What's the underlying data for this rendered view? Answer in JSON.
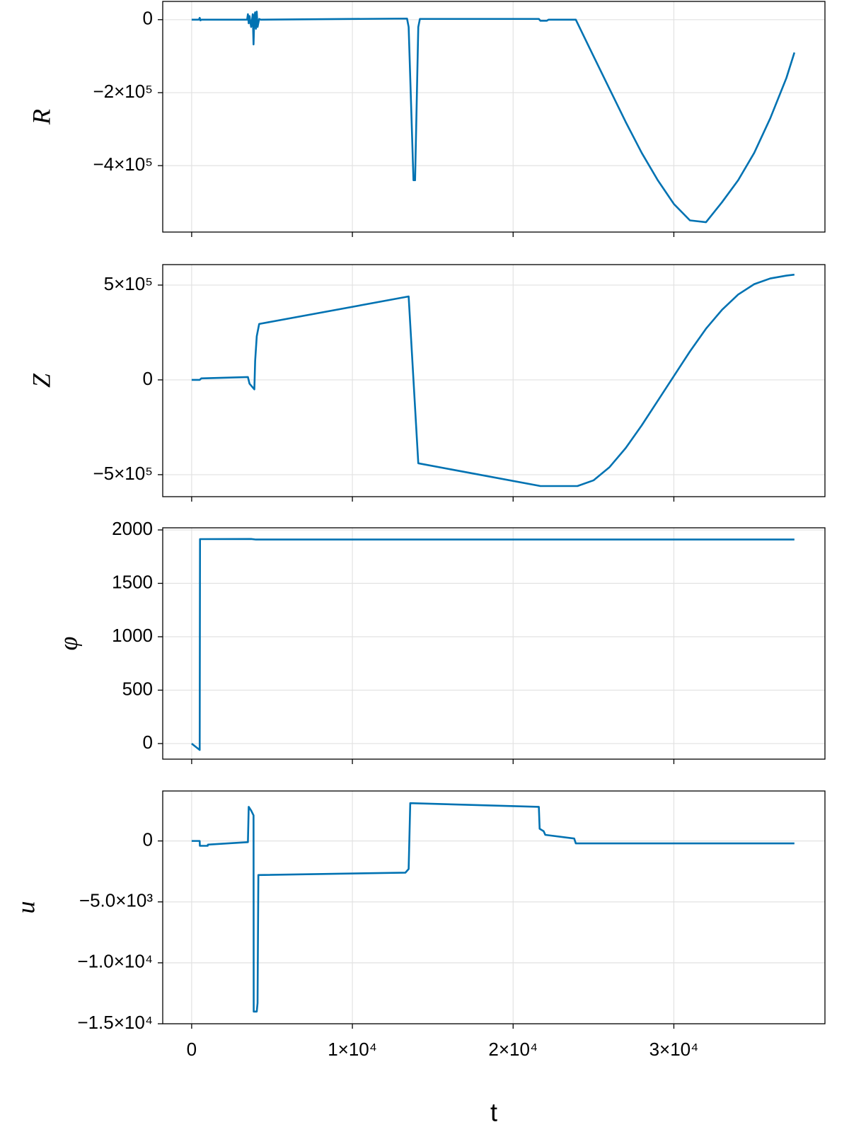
{
  "chart_data": [
    {
      "type": "line",
      "ylabel": "R",
      "color": "#0072b2",
      "x": [
        0,
        450,
        500,
        550,
        600,
        3450,
        3500,
        3550,
        3600,
        3700,
        3800,
        3850,
        3900,
        3950,
        4000,
        4050,
        4100,
        4200,
        4300,
        13400,
        13500,
        13800,
        13900,
        14100,
        14200,
        21600,
        21700,
        22100,
        22200,
        23900,
        25000,
        26000,
        27000,
        28000,
        29000,
        30000,
        31000,
        32000,
        33000,
        34000,
        35000,
        36000,
        37000,
        37500
      ],
      "values": [
        0,
        0,
        5000,
        -2000,
        0,
        0,
        15000,
        -10000,
        10000,
        -20000,
        15000,
        -68000,
        10000,
        20000,
        -25000,
        22000,
        -20000,
        2000,
        0,
        3000,
        -20000,
        -440000,
        -440000,
        -20000,
        2000,
        2000,
        -3000,
        -3000,
        0,
        0,
        -100000,
        -190000,
        -280000,
        -365000,
        -440000,
        -505000,
        -550000,
        -555000,
        -500000,
        -440000,
        -365000,
        -270000,
        -160000,
        -90000
      ],
      "ylim": [
        -582000,
        50000
      ],
      "yticks": [
        {
          "value": -400000,
          "label": "−4×10⁵"
        },
        {
          "value": -200000,
          "label": "−2×10⁵"
        },
        0
      ]
    },
    {
      "type": "line",
      "ylabel": "Z",
      "color": "#0072b2",
      "x": [
        0,
        500,
        600,
        3500,
        3600,
        3900,
        3950,
        4050,
        4200,
        13500,
        14100,
        21700,
        24000,
        25000,
        26000,
        27000,
        28000,
        29000,
        30000,
        31000,
        32000,
        33000,
        34000,
        35000,
        36000,
        37000,
        37500
      ],
      "values": [
        0,
        0,
        8000,
        15000,
        -20000,
        -50000,
        100000,
        230000,
        295000,
        440000,
        -440000,
        -560000,
        -560000,
        -530000,
        -460000,
        -360000,
        -240000,
        -110000,
        20000,
        150000,
        270000,
        370000,
        450000,
        505000,
        535000,
        550000,
        555000
      ],
      "ylim": [
        -616000,
        608000
      ],
      "yticks": [
        {
          "value": -500000,
          "label": "−5×10⁵"
        },
        0,
        {
          "value": 500000,
          "label": "5×10⁵"
        }
      ]
    },
    {
      "type": "line",
      "ylabel": "φ",
      "color": "#0072b2",
      "x": [
        0,
        500,
        520,
        3700,
        4000,
        37500
      ],
      "values": [
        0,
        -60,
        1914,
        1915,
        1910,
        1910
      ],
      "ylim": [
        -146,
        2020
      ],
      "yticks": [
        0,
        500,
        1000,
        1500,
        2000
      ]
    },
    {
      "type": "line",
      "ylabel": "u",
      "color": "#0072b2",
      "xlabel": "t",
      "x": [
        0,
        500,
        510,
        1000,
        1010,
        3500,
        3550,
        3700,
        3850,
        3860,
        4050,
        4100,
        4150,
        13300,
        13500,
        13600,
        21600,
        21650,
        21900,
        22000,
        23800,
        23900,
        37500
      ],
      "values": [
        0,
        0,
        -400,
        -400,
        -300,
        -100,
        2800,
        2500,
        2100,
        -14000,
        -14000,
        -13300,
        -2800,
        -2600,
        -2300,
        3100,
        2800,
        1000,
        800,
        500,
        200,
        -200,
        -200
      ],
      "ylim": [
        -15000,
        4100
      ],
      "yticks": [
        {
          "value": -15000,
          "label": "−1.5×10⁴"
        },
        {
          "value": -10000,
          "label": "−1.0×10⁴"
        },
        {
          "value": -5000,
          "label": "−5.0×10³"
        },
        0
      ],
      "xlim": [
        -1800,
        39400
      ],
      "xticks": [
        0,
        {
          "value": 10000,
          "label": "1×10⁴"
        },
        {
          "value": 20000,
          "label": "2×10⁴"
        },
        {
          "value": 30000,
          "label": "3×10⁴"
        }
      ]
    }
  ]
}
